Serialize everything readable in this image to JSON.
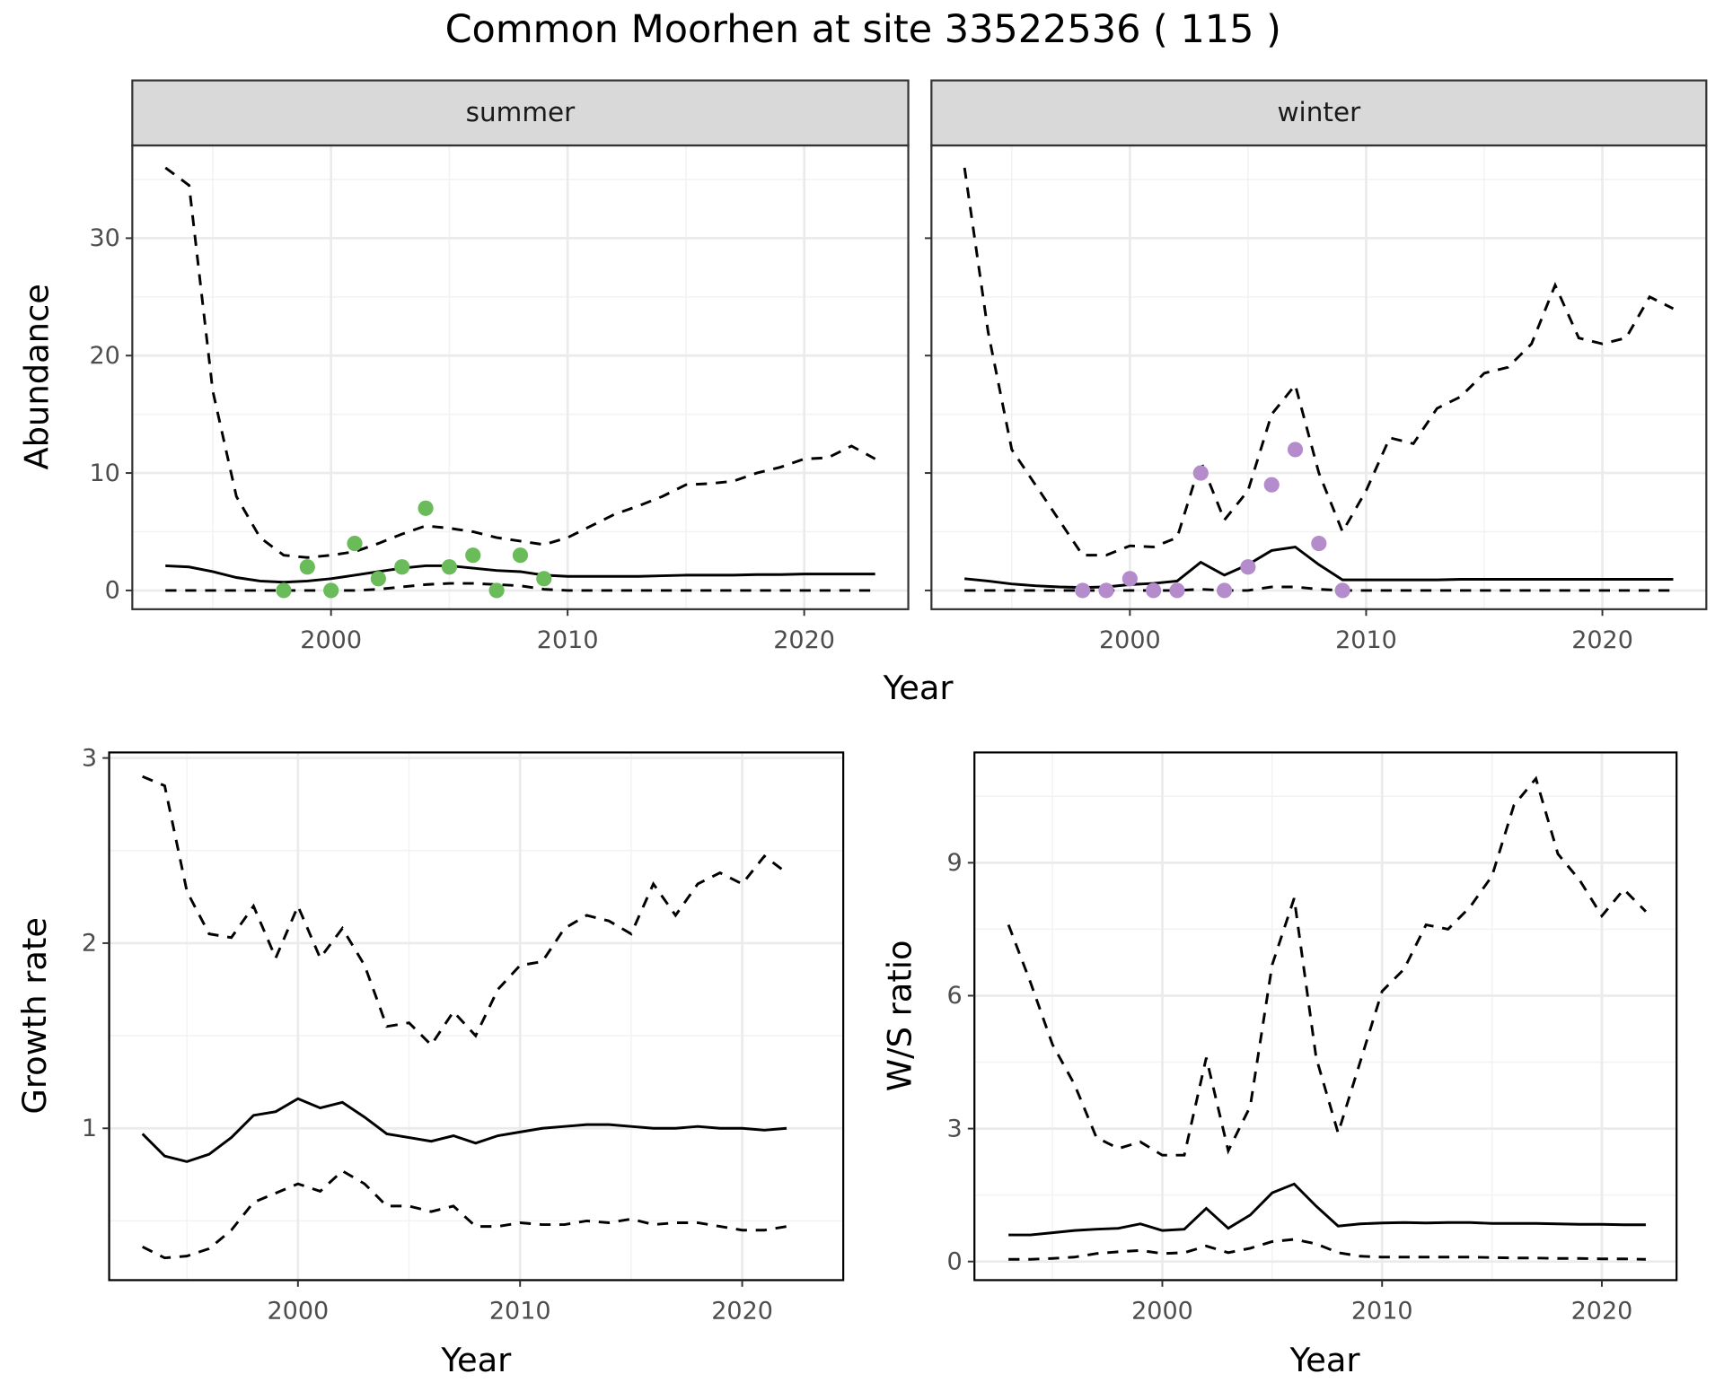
{
  "title": "Common Moorhen at site 33522536 ( 115 )",
  "chart_data": [
    {
      "type": "line",
      "facet": "summer",
      "ylabel": "Abundance",
      "xlabel": "Year",
      "x": [
        1993,
        1994,
        1995,
        1996,
        1997,
        1998,
        1999,
        2000,
        2001,
        2002,
        2003,
        2004,
        2005,
        2006,
        2007,
        2008,
        2009,
        2010,
        2011,
        2012,
        2013,
        2014,
        2015,
        2016,
        2017,
        2018,
        2019,
        2020,
        2021,
        2022,
        2023
      ],
      "series": [
        {
          "color": "#000000",
          "linestyle": "dashed",
          "values": [
            36,
            34.5,
            17,
            8,
            4.5,
            3,
            2.8,
            3,
            3.3,
            4,
            4.8,
            5.5,
            5.3,
            5,
            4.5,
            4.2,
            3.9,
            4.5,
            5.5,
            6.5,
            7.2,
            8,
            9,
            9.1,
            9.3,
            10,
            10.5,
            11.2,
            11.3,
            12.3,
            11.2
          ]
        },
        {
          "color": "#000000",
          "linestyle": "solid",
          "values": [
            2.1,
            2,
            1.6,
            1.1,
            0.8,
            0.7,
            0.8,
            1,
            1.3,
            1.6,
            1.9,
            2.1,
            2.1,
            1.9,
            1.7,
            1.6,
            1.3,
            1.2,
            1.2,
            1.2,
            1.2,
            1.25,
            1.3,
            1.3,
            1.3,
            1.35,
            1.35,
            1.4,
            1.4,
            1.4,
            1.4
          ]
        },
        {
          "color": "#000000",
          "linestyle": "dashed",
          "values": [
            0,
            0,
            0,
            0,
            0,
            0,
            0,
            0,
            0,
            0.1,
            0.3,
            0.5,
            0.6,
            0.6,
            0.5,
            0.4,
            0.1,
            0,
            0,
            0,
            0,
            0,
            0,
            0,
            0,
            0,
            0,
            0,
            0,
            0,
            0
          ]
        }
      ],
      "points": {
        "color": "#6abb59",
        "x": [
          1998,
          1999,
          2000,
          2001,
          2002,
          2003,
          2004,
          2005,
          2006,
          2007,
          2008,
          2009
        ],
        "values": [
          0,
          2,
          0,
          4,
          1,
          2,
          7,
          2,
          3,
          0,
          3,
          1
        ]
      },
      "xlim": [
        1991.6,
        2024.4
      ],
      "xticks": [
        2000,
        2010,
        2020
      ],
      "ylim": [
        -1.6,
        37.9
      ],
      "yticks": [
        0,
        10,
        20,
        30
      ],
      "ytick_labels": true,
      "grid": "major+minor"
    },
    {
      "type": "line",
      "facet": "winter",
      "x": [
        1993,
        1994,
        1995,
        1996,
        1997,
        1998,
        1999,
        2000,
        2001,
        2002,
        2003,
        2004,
        2005,
        2006,
        2007,
        2008,
        2009,
        2010,
        2011,
        2012,
        2013,
        2014,
        2015,
        2016,
        2017,
        2018,
        2019,
        2020,
        2021,
        2022,
        2023
      ],
      "series": [
        {
          "color": "#000000",
          "linestyle": "dashed",
          "values": [
            36,
            22,
            12,
            9,
            6,
            3,
            3,
            3.8,
            3.7,
            4.5,
            11,
            6,
            8.5,
            15,
            17.5,
            10,
            5,
            8.5,
            13,
            12.5,
            15.5,
            16.5,
            18.5,
            19,
            21,
            26,
            21.5,
            21,
            21.5,
            25,
            24
          ]
        },
        {
          "color": "#000000",
          "linestyle": "solid",
          "values": [
            1,
            0.8,
            0.55,
            0.4,
            0.3,
            0.25,
            0.3,
            0.5,
            0.6,
            0.8,
            2.4,
            1.3,
            2.2,
            3.4,
            3.7,
            2.2,
            0.9,
            0.9,
            0.9,
            0.9,
            0.9,
            0.95,
            0.95,
            0.95,
            0.95,
            0.95,
            0.95,
            0.95,
            0.95,
            0.95,
            0.95
          ]
        },
        {
          "color": "#000000",
          "linestyle": "dashed",
          "values": [
            0,
            0,
            0,
            0,
            0,
            0,
            0,
            0,
            0,
            0,
            0.1,
            0,
            0,
            0.3,
            0.3,
            0.1,
            0,
            0,
            0,
            0,
            0,
            0,
            0,
            0,
            0,
            0,
            0,
            0,
            0,
            0,
            0
          ]
        }
      ],
      "points": {
        "color": "#b48ccb",
        "x": [
          1998,
          1999,
          2000,
          2001,
          2002,
          2003,
          2004,
          2005,
          2006,
          2007,
          2008,
          2009
        ],
        "values": [
          0,
          0,
          1,
          0,
          0,
          10,
          0,
          2,
          9,
          12,
          4,
          0
        ]
      },
      "xlim": [
        1991.6,
        2024.4
      ],
      "xticks": [
        2000,
        2010,
        2020
      ],
      "ylim": [
        -1.6,
        37.9
      ],
      "yticks": [
        0,
        10,
        20,
        30
      ],
      "ytick_labels": false,
      "grid": "major+minor"
    },
    {
      "type": "line",
      "ylabel": "Growth rate",
      "xlabel": "Year",
      "x": [
        1993,
        1994,
        1995,
        1996,
        1997,
        1998,
        1999,
        2000,
        2001,
        2002,
        2003,
        2004,
        2005,
        2006,
        2007,
        2008,
        2009,
        2010,
        2011,
        2012,
        2013,
        2014,
        2015,
        2016,
        2017,
        2018,
        2019,
        2020,
        2021,
        2022
      ],
      "series": [
        {
          "color": "#000000",
          "linestyle": "dashed",
          "values": [
            2.9,
            2.85,
            2.28,
            2.05,
            2.03,
            2.2,
            1.92,
            2.2,
            1.92,
            2.08,
            1.88,
            1.55,
            1.57,
            1.45,
            1.63,
            1.5,
            1.75,
            1.88,
            1.9,
            2.08,
            2.15,
            2.12,
            2.05,
            2.32,
            2.15,
            2.32,
            2.38,
            2.32,
            2.47,
            2.38
          ]
        },
        {
          "color": "#000000",
          "linestyle": "solid",
          "values": [
            0.97,
            0.85,
            0.82,
            0.86,
            0.95,
            1.07,
            1.09,
            1.16,
            1.11,
            1.14,
            1.06,
            0.97,
            0.95,
            0.93,
            0.96,
            0.92,
            0.96,
            0.98,
            1,
            1.01,
            1.02,
            1.02,
            1.01,
            1,
            1,
            1.01,
            1,
            1,
            0.99,
            1
          ]
        },
        {
          "color": "#000000",
          "linestyle": "dashed",
          "values": [
            0.36,
            0.3,
            0.31,
            0.35,
            0.45,
            0.6,
            0.65,
            0.7,
            0.66,
            0.77,
            0.7,
            0.58,
            0.58,
            0.55,
            0.58,
            0.47,
            0.47,
            0.49,
            0.48,
            0.48,
            0.5,
            0.49,
            0.51,
            0.48,
            0.49,
            0.49,
            0.47,
            0.45,
            0.45,
            0.47
          ]
        }
      ],
      "xlim": [
        1991.5,
        2024.55
      ],
      "xticks": [
        2000,
        2010,
        2020
      ],
      "ylim": [
        0.18,
        3.03
      ],
      "yticks": [
        1,
        2,
        3
      ],
      "ytick_labels": true,
      "grid": "major+minor"
    },
    {
      "type": "line",
      "ylabel": "W/S ratio",
      "xlabel": "Year",
      "x": [
        1993,
        1994,
        1995,
        1996,
        1997,
        1998,
        1999,
        2000,
        2001,
        2002,
        2003,
        2004,
        2005,
        2006,
        2007,
        2008,
        2009,
        2010,
        2011,
        2012,
        2013,
        2014,
        2015,
        2016,
        2017,
        2018,
        2019,
        2020,
        2021,
        2022
      ],
      "series": [
        {
          "color": "#000000",
          "linestyle": "dashed",
          "values": [
            7.6,
            6.3,
            4.9,
            4,
            2.8,
            2.55,
            2.7,
            2.4,
            2.4,
            4.6,
            2.5,
            3.5,
            6.7,
            8.2,
            4.6,
            2.9,
            4.5,
            6.1,
            6.6,
            7.6,
            7.5,
            8,
            8.7,
            10.3,
            10.9,
            9.2,
            8.6,
            7.8,
            8.4,
            7.9
          ]
        },
        {
          "color": "#000000",
          "linestyle": "solid",
          "values": [
            0.6,
            0.6,
            0.65,
            0.7,
            0.73,
            0.75,
            0.85,
            0.7,
            0.73,
            1.2,
            0.75,
            1.05,
            1.55,
            1.75,
            1.25,
            0.8,
            0.85,
            0.87,
            0.88,
            0.87,
            0.88,
            0.88,
            0.86,
            0.86,
            0.86,
            0.85,
            0.84,
            0.84,
            0.83,
            0.83
          ]
        },
        {
          "color": "#000000",
          "linestyle": "dashed",
          "values": [
            0.05,
            0.05,
            0.07,
            0.1,
            0.18,
            0.22,
            0.25,
            0.18,
            0.2,
            0.35,
            0.2,
            0.3,
            0.45,
            0.5,
            0.4,
            0.2,
            0.12,
            0.1,
            0.1,
            0.1,
            0.1,
            0.1,
            0.09,
            0.08,
            0.08,
            0.07,
            0.07,
            0.06,
            0.06,
            0.05
          ]
        }
      ],
      "xlim": [
        1991.45,
        2023.4
      ],
      "xticks": [
        2000,
        2010,
        2020
      ],
      "ylim": [
        -0.42,
        11.49
      ],
      "yticks": [
        0,
        3,
        6,
        9
      ],
      "ytick_labels": true,
      "grid": "major+minor"
    }
  ]
}
